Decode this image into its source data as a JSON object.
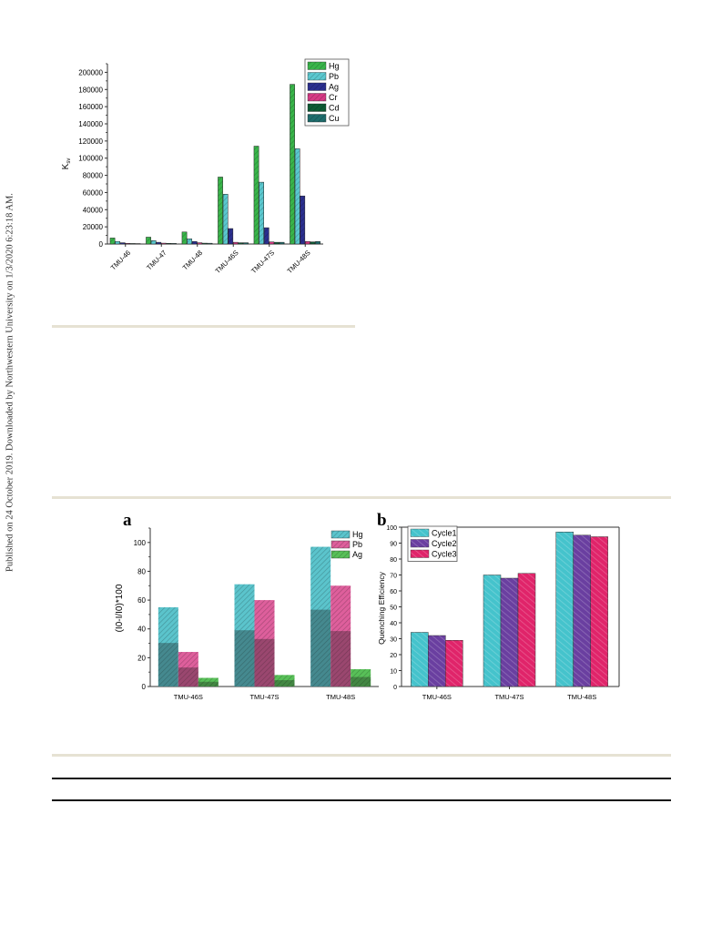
{
  "sidebar_note": "Published on 24 October 2019. Downloaded by Northwestern University on 1/3/2020 6:23:18 AM.",
  "colors": {
    "Hg": "#39b54a",
    "Pb": "#5bc8cf",
    "Ag": "#2b2f8f",
    "Cr": "#d63a85",
    "Cd": "#0d5b34",
    "Cu": "#1e6d6d",
    "Hg_a": "#5bc4cc",
    "Pb_a": "#de5f9c",
    "Ag_a": "#58c058",
    "Cycle1": "#45c3cc",
    "Cycle2": "#6a3fa0",
    "Cycle3": "#e0246a",
    "rule": "#e6e2d3"
  },
  "chart_data": [
    {
      "type": "bar",
      "title": "",
      "xlabel": "",
      "ylabel": "K",
      "ylabel_sub": "sv",
      "ylim": [
        0,
        210000
      ],
      "yticks": [
        "0",
        "20000",
        "40000",
        "60000",
        "80000",
        "100000",
        "120000",
        "140000",
        "160000",
        "180000",
        "200000"
      ],
      "legend_position": "top-right",
      "categories": [
        "TMU-46",
        "TMU-47",
        "TMU-48",
        "TMU-46S",
        "TMU-47S",
        "TMU-48S"
      ],
      "series": [
        {
          "name": "Hg",
          "values": [
            7000,
            8000,
            14000,
            78000,
            114000,
            186000
          ]
        },
        {
          "name": "Pb",
          "values": [
            3000,
            4000,
            6000,
            58000,
            72000,
            111000
          ]
        },
        {
          "name": "Ag",
          "values": [
            1500,
            2000,
            3000,
            18000,
            19000,
            56000
          ]
        },
        {
          "name": "Cr",
          "values": [
            800,
            1000,
            1500,
            2000,
            2500,
            3000
          ]
        },
        {
          "name": "Cd",
          "values": [
            600,
            800,
            1000,
            1500,
            2000,
            2500
          ]
        },
        {
          "name": "Cu",
          "values": [
            500,
            700,
            900,
            1500,
            2000,
            3000
          ]
        }
      ]
    },
    {
      "type": "bar",
      "panel": "a",
      "title": "",
      "xlabel": "",
      "ylabel": "(I0-I/I0)*100",
      "ylim": [
        0,
        110
      ],
      "yticks": [
        "0",
        "20",
        "40",
        "60",
        "80",
        "100"
      ],
      "legend_position": "top-right",
      "categories": [
        "TMU-46S",
        "TMU-47S",
        "TMU-48S"
      ],
      "series": [
        {
          "name": "Hg",
          "values": [
            55,
            71,
            97
          ]
        },
        {
          "name": "Pb",
          "values": [
            24,
            60,
            70
          ]
        },
        {
          "name": "Ag",
          "values": [
            6,
            8,
            12
          ]
        }
      ]
    },
    {
      "type": "bar",
      "panel": "b",
      "title": "",
      "xlabel": "",
      "ylabel": "Quenching Efficiency",
      "ylim": [
        0,
        100
      ],
      "yticks": [
        "0",
        "10",
        "20",
        "30",
        "40",
        "50",
        "60",
        "70",
        "80",
        "90",
        "100"
      ],
      "legend_position": "top-left",
      "categories": [
        "TMU-46S",
        "TMU-47S",
        "TMU-48S"
      ],
      "series": [
        {
          "name": "Cycle1",
          "values": [
            34,
            70,
            97
          ]
        },
        {
          "name": "Cycle2",
          "values": [
            32,
            68,
            95
          ]
        },
        {
          "name": "Cycle3",
          "values": [
            29,
            71,
            94
          ]
        }
      ]
    }
  ]
}
